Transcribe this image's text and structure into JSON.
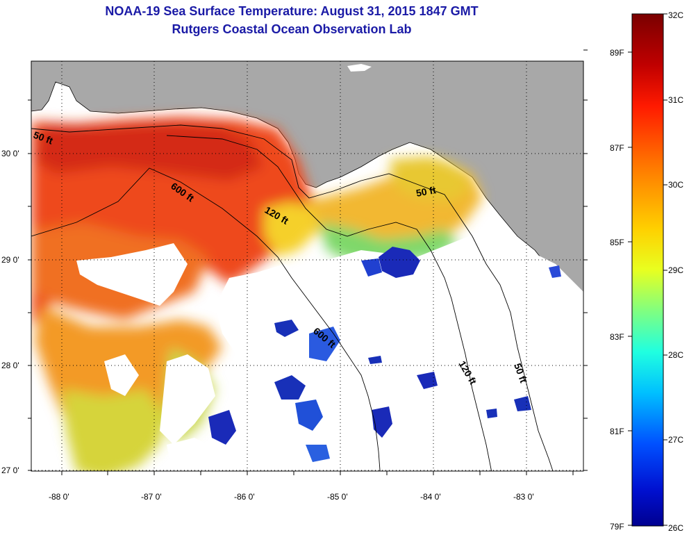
{
  "header": {
    "title_line1": "NOAA-19 Sea Surface Temperature:  August 31, 2015 1847 GMT",
    "title_line2": "Rutgers Coastal Ocean Observation Lab"
  },
  "map": {
    "lat_labels": [
      "30 0'",
      "29 0'",
      "28 0'",
      "27 0'"
    ],
    "lon_labels": [
      "-88 0'",
      "-87 0'",
      "-86 0'",
      "-85 0'",
      "-84 0'",
      "-83 0'"
    ],
    "contour_labels": [
      "50 ft",
      "600 ft",
      "120 ft",
      "50 ft",
      "600 ft",
      "120 ft",
      "50 ft"
    ]
  },
  "colorbar": {
    "celsius_labels": [
      "32C",
      "31C",
      "30C",
      "29C",
      "28C",
      "27C",
      "26C"
    ],
    "fahrenheit_labels": [
      "89F",
      "87F",
      "85F",
      "83F",
      "81F",
      "79F"
    ]
  },
  "colors": {
    "land": "#a8a8a8",
    "no_data": "#ffffff",
    "title": "#1a1aa6"
  }
}
